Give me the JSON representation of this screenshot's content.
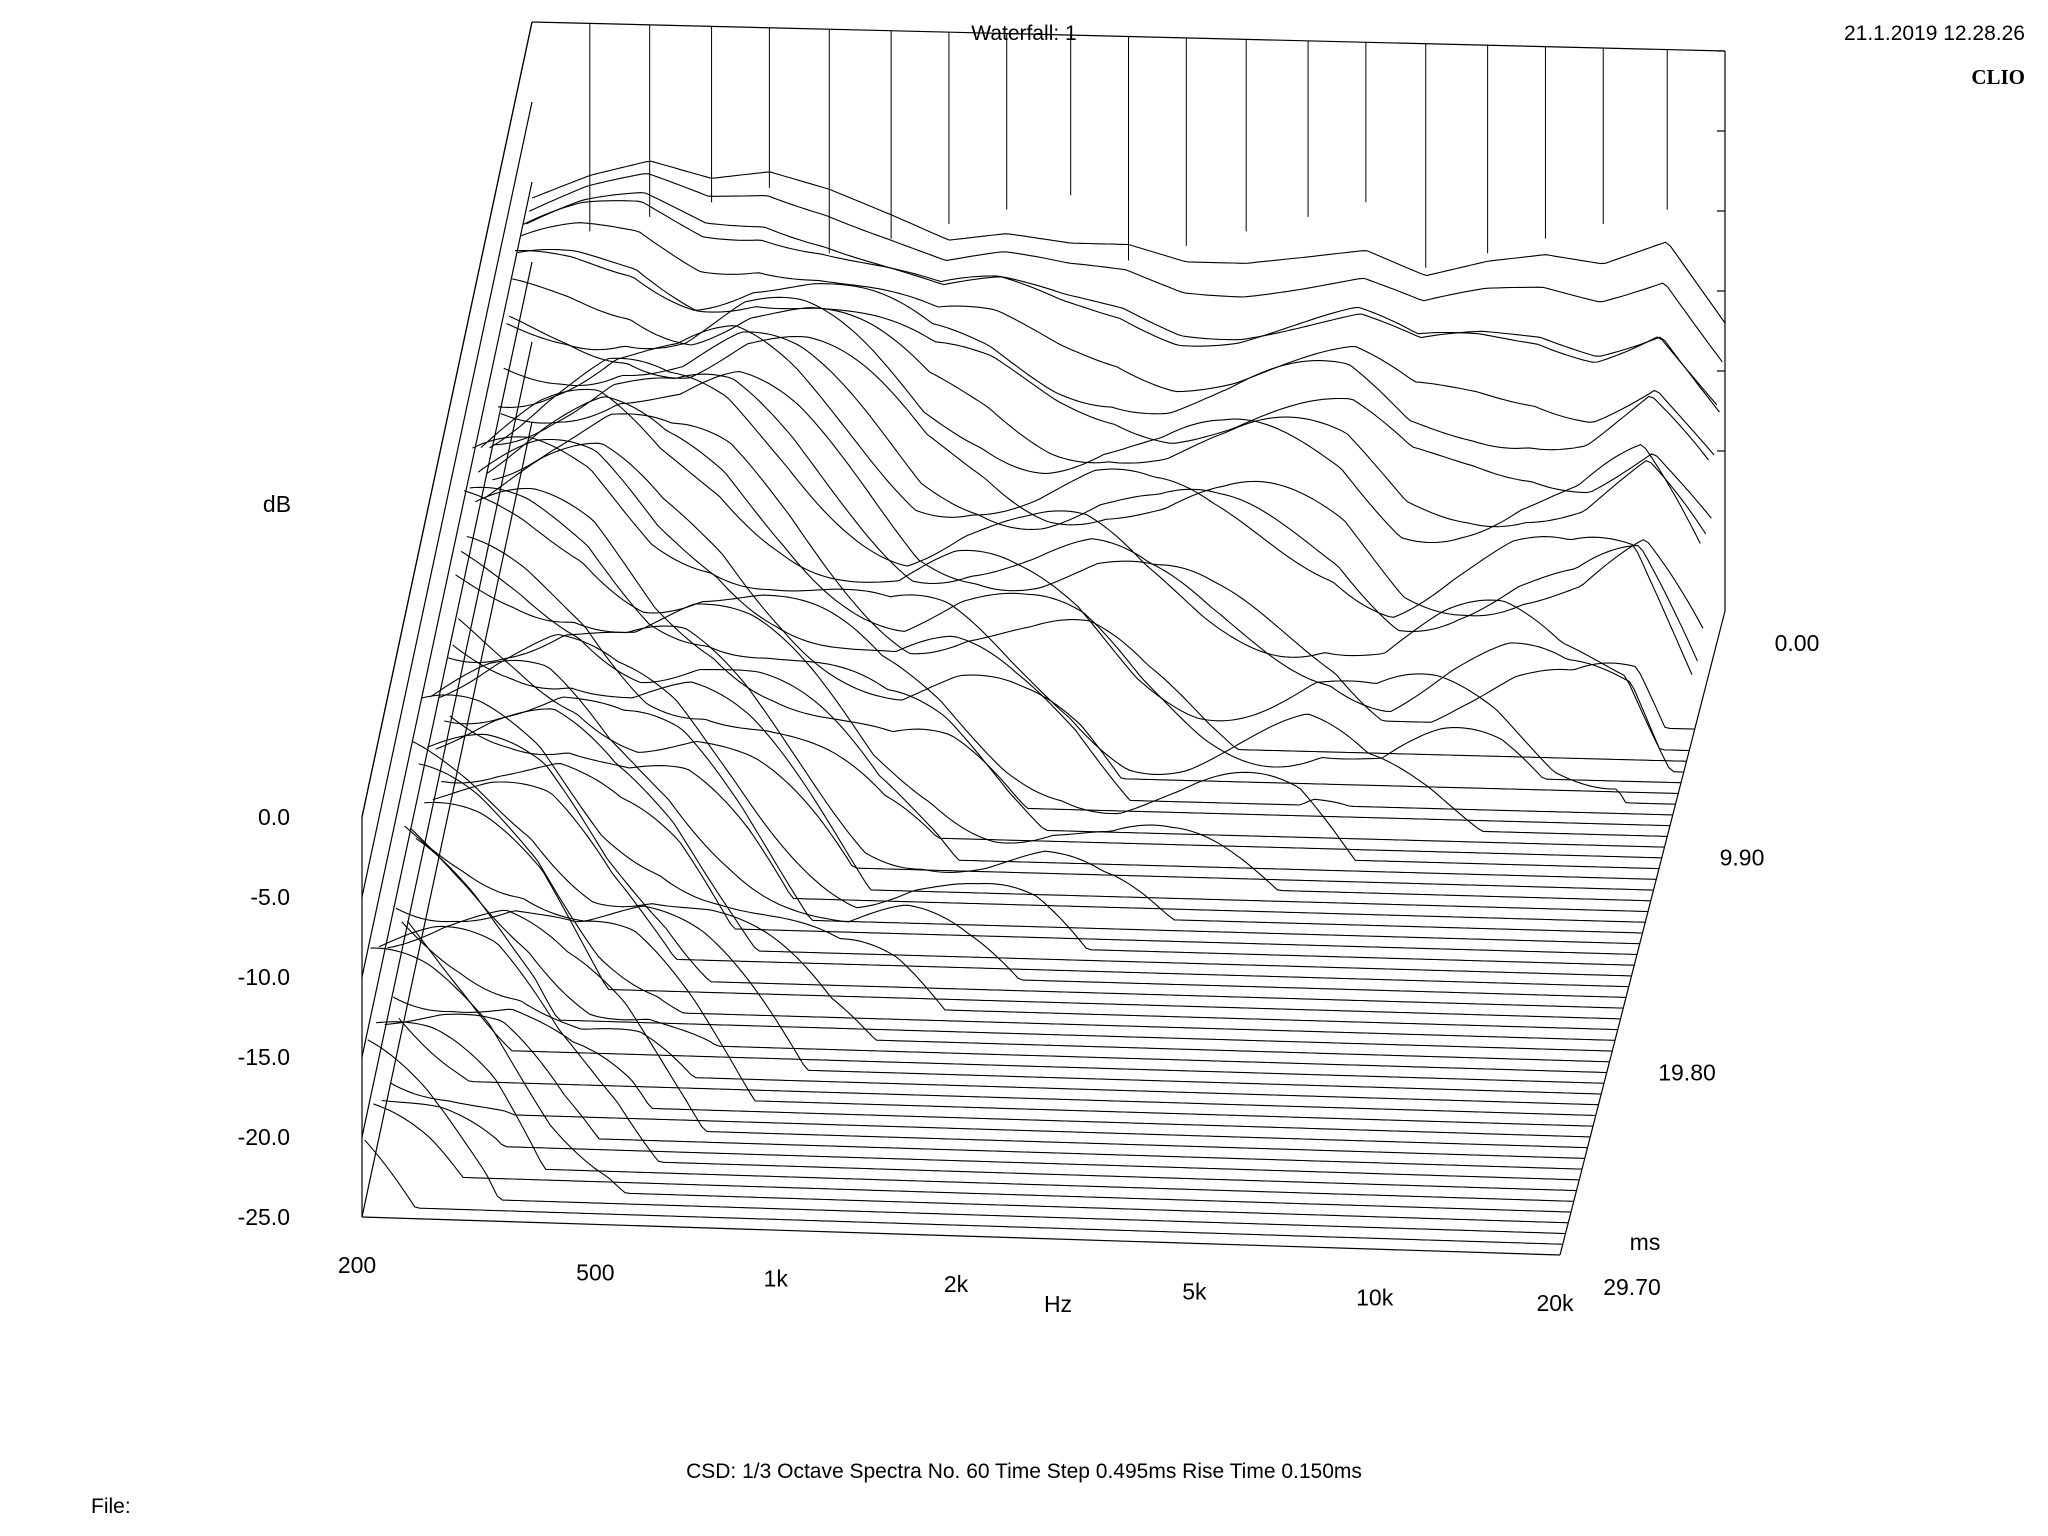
{
  "header": {
    "title": "Waterfall: 1",
    "timestamp": "21.1.2019 12.28.26",
    "brand": "CLIO"
  },
  "footer": {
    "settings": "CSD:   1/3 Octave   Spectra No. 60   Time Step 0.495ms   Rise Time 0.150ms",
    "file_label": "File:"
  },
  "chart_data": {
    "type": "waterfall",
    "title": "Waterfall: 1",
    "x_axis": {
      "label": "Hz",
      "scale": "log",
      "range": [
        200,
        20000
      ],
      "ticks": [
        {
          "value": 200,
          "label": "200"
        },
        {
          "value": 500,
          "label": "500"
        },
        {
          "value": 1000,
          "label": "1k"
        },
        {
          "value": 2000,
          "label": "2k"
        },
        {
          "value": 5000,
          "label": "5k"
        },
        {
          "value": 10000,
          "label": "10k"
        },
        {
          "value": 20000,
          "label": "20k"
        }
      ]
    },
    "y_axis": {
      "label": "dB",
      "range": [
        -25,
        0
      ],
      "ticks": [
        {
          "value": 0,
          "label": "0.0"
        },
        {
          "value": -5,
          "label": "-5.0"
        },
        {
          "value": -10,
          "label": "-10.0"
        },
        {
          "value": -15,
          "label": "-15.0"
        },
        {
          "value": -20,
          "label": "-20.0"
        },
        {
          "value": -25,
          "label": "-25.0"
        }
      ]
    },
    "z_axis": {
      "label": "ms",
      "range": [
        0,
        29.7
      ],
      "ticks": [
        {
          "value": 0,
          "label": "0.00"
        },
        {
          "value": 9.9,
          "label": "9.90"
        },
        {
          "value": 19.8,
          "label": "19.80"
        },
        {
          "value": 29.7,
          "label": "29.70"
        }
      ]
    },
    "spectra_count": 60,
    "time_step_ms": 0.495,
    "resolution": "1/3 Octave",
    "rise_time_ms": 0.15,
    "frequency_points_hz": [
      200,
      250,
      315,
      400,
      500,
      630,
      800,
      1000,
      1250,
      1600,
      2000,
      2500,
      3150,
      4000,
      5000,
      6300,
      8000,
      10000,
      12500,
      16000,
      20000
    ],
    "spectrum_0ms_db": [
      -1,
      0.5,
      1.5,
      0.5,
      1,
      0,
      -1.5,
      -3,
      -2.5,
      -3,
      -3,
      -4,
      -4,
      -3.5,
      -3,
      -4.5,
      -3.5,
      -3,
      -3.5,
      -2,
      -7
    ]
  }
}
